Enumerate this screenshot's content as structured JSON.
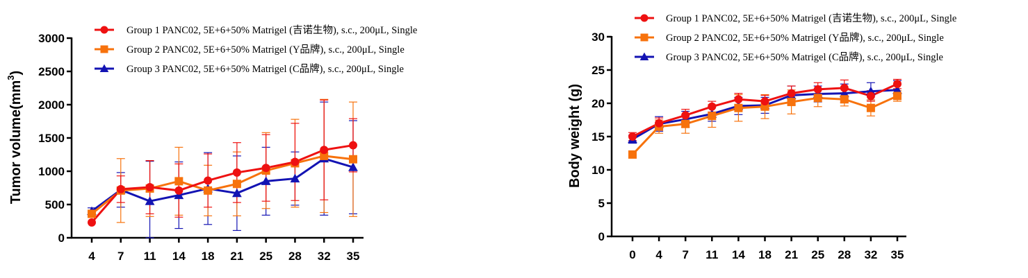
{
  "colors": {
    "group1": "#ee1111",
    "group2": "#f7720c",
    "group3": "#1313b3",
    "axis": "#000000"
  },
  "legend_entries": [
    "Group 1 PANC02, 5E+6+50% Matrigel (吉诺生物), s.c., 200μL, Single",
    "Group 2 PANC02, 5E+6+50% Matrigel (Y品牌), s.c., 200μL, Single",
    "Group 3 PANC02, 5E+6+50% Matrigel (C品牌), s.c., 200μL, Single"
  ],
  "chart_data": [
    {
      "id": "tumor",
      "type": "line",
      "title": "",
      "xlabel": "",
      "ylabel": "Tumor volume(mm³)",
      "ylabel_main": "Tumor volume(mm",
      "ylabel_sup": "3",
      "ylabel_tail": ")",
      "ylim": [
        0,
        3000
      ],
      "y_ticks": [
        0,
        500,
        1000,
        1500,
        2000,
        2500,
        3000
      ],
      "categories": [
        "4",
        "7",
        "11",
        "14",
        "18",
        "21",
        "25",
        "28",
        "32",
        "35"
      ],
      "legend_position": "top",
      "series": [
        {
          "name": "Group 1 PANC02, 5E+6+50% Matrigel (吉诺生物), s.c., 200μL, Single",
          "marker": "circle",
          "color": "#ee1111",
          "values": [
            230,
            730,
            760,
            710,
            860,
            980,
            1050,
            1140,
            1320,
            1390
          ],
          "errors": [
            0,
            200,
            400,
            400,
            400,
            450,
            500,
            580,
            750,
            400
          ]
        },
        {
          "name": "Group 2 PANC02, 5E+6+50% Matrigel (Y品牌), s.c., 200μL, Single",
          "marker": "square",
          "color": "#f7720c",
          "values": [
            360,
            710,
            740,
            850,
            710,
            810,
            1010,
            1120,
            1230,
            1180
          ],
          "errors": [
            0,
            480,
            420,
            510,
            380,
            480,
            570,
            660,
            850,
            860
          ]
        },
        {
          "name": "Group 3 PANC02, 5E+6+50% Matrigel (C品牌), s.c., 200μL, Single",
          "marker": "triangle",
          "color": "#1313b3",
          "values": [
            400,
            720,
            550,
            640,
            740,
            670,
            850,
            890,
            1190,
            1060
          ],
          "errors": [
            50,
            260,
            600,
            500,
            540,
            560,
            510,
            400,
            850,
            700
          ]
        }
      ]
    },
    {
      "id": "weight",
      "type": "line",
      "title": "",
      "xlabel": "",
      "ylabel": "Body weight (g)",
      "ylim": [
        0,
        30
      ],
      "y_ticks": [
        0,
        5,
        10,
        15,
        20,
        25,
        30
      ],
      "categories": [
        "0",
        "4",
        "7",
        "11",
        "14",
        "18",
        "21",
        "25",
        "28",
        "32",
        "35"
      ],
      "legend_position": "top",
      "series": [
        {
          "name": "Group 1 PANC02, 5E+6+50% Matrigel (吉诺生物), s.c., 200μL, Single",
          "marker": "circle",
          "color": "#ee1111",
          "values": [
            15.0,
            17.0,
            18.2,
            19.5,
            20.6,
            20.3,
            21.5,
            22.1,
            22.3,
            21.1,
            22.9
          ],
          "errors": [
            0.6,
            0.8,
            0.9,
            0.8,
            0.9,
            0.9,
            1.1,
            1.0,
            1.2,
            0.8,
            0.7
          ]
        },
        {
          "name": "Group 2 PANC02, 5E+6+50% Matrigel (Y品牌), s.c., 200μL, Single",
          "marker": "square",
          "color": "#f7720c",
          "values": [
            12.3,
            16.5,
            16.9,
            18.1,
            19.3,
            19.5,
            20.2,
            20.8,
            20.6,
            19.3,
            21.1
          ],
          "errors": [
            0.3,
            1.0,
            1.4,
            1.7,
            2.0,
            1.8,
            1.8,
            1.3,
            1.0,
            1.2,
            0.8
          ]
        },
        {
          "name": "Group 3 PANC02, 5E+6+50% Matrigel (C品牌), s.c., 200μL, Single",
          "marker": "triangle",
          "color": "#1313b3",
          "values": [
            14.6,
            16.9,
            17.6,
            18.4,
            19.6,
            19.7,
            21.2,
            21.4,
            21.5,
            21.8,
            22.0
          ],
          "errors": [
            0.6,
            1.1,
            1.2,
            1.1,
            1.3,
            1.2,
            1.4,
            1.2,
            1.4,
            1.3,
            1.4
          ]
        }
      ]
    }
  ]
}
